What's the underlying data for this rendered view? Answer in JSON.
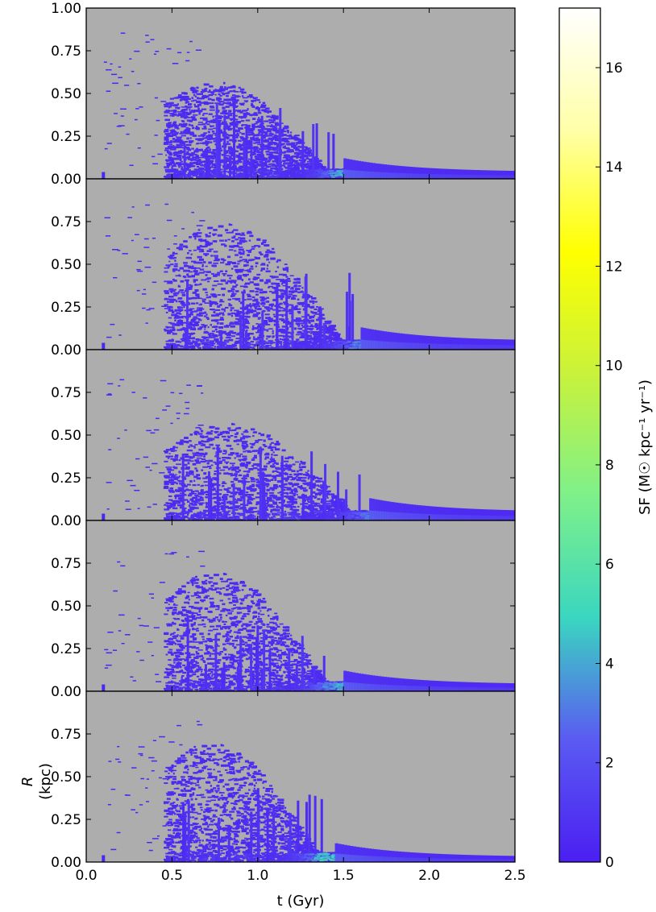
{
  "chart_data": {
    "type": "heatmap",
    "panel_count": 5,
    "x_axis": {
      "label": "t (Gyr)",
      "lim": [
        0.0,
        2.5
      ],
      "ticks": [
        0.0,
        0.5,
        1.0,
        1.5,
        2.0,
        2.5
      ],
      "tick_labels": [
        "0.0",
        "0.5",
        "1.0",
        "1.5",
        "2.0",
        "2.5"
      ]
    },
    "y_axis": {
      "label_symbol": "R",
      "label_unit": "(kpc)",
      "lim": [
        0.0,
        1.0
      ],
      "top_panel_tick_labels": [
        "1.00",
        "0.75",
        "0.50",
        "0.25",
        "0.00"
      ],
      "other_panel_tick_labels": [
        "0.75",
        "0.50",
        "0.25",
        "0.00"
      ]
    },
    "colorbar": {
      "label": "SF (M☉ kpc⁻¹ yr⁻¹)",
      "lim": [
        0,
        17.2
      ],
      "ticks": [
        0,
        2,
        4,
        6,
        8,
        10,
        12,
        14,
        16
      ],
      "tick_labels": [
        "0",
        "2",
        "4",
        "6",
        "8",
        "10",
        "12",
        "14",
        "16"
      ],
      "colormap_stops": [
        "#4b1ff2",
        "#5a5af2",
        "#3ad6c0",
        "#7ef08a",
        "#c8f23c",
        "#ffff00",
        "#ffffa8",
        "#ffffff"
      ]
    },
    "background_color": "#adadad",
    "panels": [
      {
        "t_peak": 1.45,
        "r_outer_max": 0.6,
        "tail_r": 0.04,
        "tail_end": 2.5,
        "data_start": 0.1,
        "outlier_r": 0.04,
        "hot_peak_t": 1.5,
        "hot_peak_r": 0.02,
        "hot_peak_sf": 4.5
      },
      {
        "t_peak": 1.55,
        "r_outer_max": 0.8,
        "tail_r": 0.05,
        "tail_end": 2.5,
        "data_start": 0.1,
        "outlier_r": 0.04,
        "hot_peak_t": 1.6,
        "hot_peak_r": 0.03,
        "hot_peak_sf": 3.5
      },
      {
        "t_peak": 1.6,
        "r_outer_max": 0.6,
        "tail_r": 0.05,
        "tail_end": 2.5,
        "data_start": 0.1,
        "outlier_r": 0.04,
        "hot_peak_t": 1.65,
        "hot_peak_r": 0.03,
        "hot_peak_sf": 3.0
      },
      {
        "t_peak": 1.45,
        "r_outer_max": 0.75,
        "tail_r": 0.04,
        "tail_end": 2.5,
        "data_start": 0.1,
        "outlier_r": 0.04,
        "hot_peak_t": 1.45,
        "hot_peak_r": 0.02,
        "hot_peak_sf": 4.0
      },
      {
        "t_peak": 1.4,
        "r_outer_max": 0.75,
        "tail_r": 0.03,
        "tail_end": 2.5,
        "data_start": 0.1,
        "outlier_r": 0.04,
        "hot_peak_t": 1.4,
        "hot_peak_r": 0.02,
        "hot_peak_sf": 5.0
      }
    ]
  }
}
